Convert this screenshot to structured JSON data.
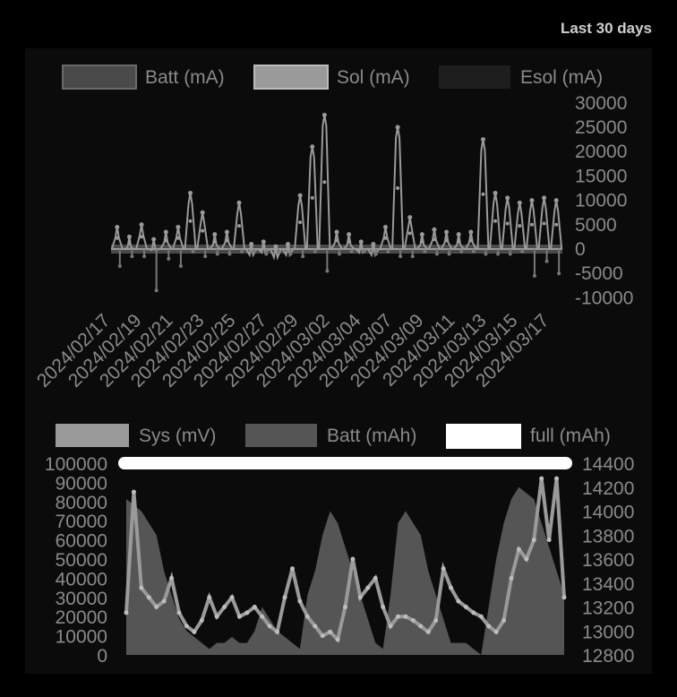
{
  "header": {
    "period_label": "Last 30 days"
  },
  "colors": {
    "background": "#000000",
    "panel": "#0b0b0b",
    "batt_ma": "#4a4a4a",
    "sol_ma": "#9a9a9a",
    "esol_ma": "#1e1e1e",
    "sys_mv": "#9a9a9a",
    "batt_mah": "#555555",
    "full_mah": "#ffffff",
    "text": "#8a8a8a"
  },
  "chart_data": [
    {
      "type": "line",
      "legend": [
        "Batt (mA)",
        "Sol (mA)",
        "Esol (mA)"
      ],
      "legend_position": "top",
      "y_axis_side": "right",
      "ylim": [
        -10000,
        30000
      ],
      "y_ticks": [
        "30000",
        "25000",
        "20000",
        "15000",
        "10000",
        "5000",
        "0",
        "-5000",
        "-10000"
      ],
      "x_tick_labels": [
        "2024/02/17",
        "2024/02/19",
        "2024/02/21",
        "2024/02/23",
        "2024/02/25",
        "2024/02/27",
        "2024/02/29",
        "2024/03/02",
        "2024/03/04",
        "2024/03/07",
        "2024/03/09",
        "2024/03/11",
        "2024/03/13",
        "2024/03/15",
        "2024/03/17"
      ],
      "series": [
        {
          "name": "Sol (mA)",
          "peaks": [
            4500,
            2500,
            5000,
            2000,
            3500,
            4500,
            11500,
            7500,
            3000,
            3500,
            9500,
            1000,
            1500,
            500,
            1000,
            11000,
            21000,
            27500,
            3500,
            3000,
            1500,
            1000,
            4500,
            25000,
            6500,
            3000,
            4000,
            3500,
            3000,
            3500,
            22500,
            11500,
            10500,
            9500,
            10000,
            10500,
            10000
          ]
        },
        {
          "name": "Batt (mA)",
          "troughs": [
            -3500,
            -1500,
            -1500,
            -8500,
            -2000,
            -3500,
            -500,
            -1500,
            -1000,
            -1000,
            -500,
            -500,
            -1000,
            -500,
            -1000,
            -1500,
            -500,
            -4500,
            -1000,
            -500,
            -500,
            -1000,
            -500,
            -1500,
            -1500,
            -500,
            -1000,
            -1000,
            -500,
            -500,
            -1000,
            -1000,
            -1000,
            -500,
            -5500,
            -2500,
            -5000
          ]
        }
      ]
    },
    {
      "type": "area",
      "legend": [
        "Sys (mV)",
        "Batt (mAh)",
        "full (mAh)"
      ],
      "legend_position": "top",
      "y_left_lim": [
        0,
        100000
      ],
      "y_left_ticks": [
        "100000",
        "90000",
        "80000",
        "70000",
        "60000",
        "50000",
        "40000",
        "30000",
        "20000",
        "10000",
        "0"
      ],
      "y_right_lim": [
        12800,
        14400
      ],
      "y_right_ticks": [
        "14400",
        "14200",
        "14000",
        "13800",
        "13600",
        "13400",
        "13200",
        "13000",
        "12800"
      ],
      "series": [
        {
          "name": "full (mAh)",
          "axis": "right",
          "value": 14400
        },
        {
          "name": "Batt (mAh)",
          "axis": "right",
          "values": [
            14100,
            14050,
            14000,
            13900,
            13800,
            13500,
            13300,
            13100,
            13000,
            12950,
            12900,
            12850,
            12900,
            12900,
            12950,
            12900,
            12900,
            13000,
            13200,
            13100,
            13000,
            12950,
            12900,
            12850,
            13300,
            13500,
            13800,
            14000,
            13900,
            13700,
            13500,
            13300,
            13100,
            12900,
            12850,
            13300,
            13900,
            14000,
            13900,
            13800,
            13500,
            13300,
            13100,
            12900,
            12900,
            12900,
            12850,
            12800,
            13200,
            13600,
            13900,
            14100,
            14200,
            14150,
            14100,
            13900,
            13700,
            13500,
            13300
          ]
        },
        {
          "name": "Sys (mV)",
          "axis": "left",
          "values": [
            22000,
            85000,
            35000,
            30000,
            25000,
            28000,
            40000,
            22000,
            15000,
            12000,
            18000,
            30000,
            20000,
            25000,
            30000,
            20000,
            22000,
            25000,
            20000,
            15000,
            12000,
            30000,
            45000,
            28000,
            20000,
            15000,
            10000,
            12000,
            8000,
            25000,
            50000,
            30000,
            35000,
            40000,
            25000,
            15000,
            20000,
            20000,
            18000,
            15000,
            12000,
            18000,
            45000,
            35000,
            28000,
            25000,
            22000,
            20000,
            15000,
            12000,
            18000,
            40000,
            55000,
            50000,
            60000,
            92000,
            60000,
            92000,
            30000
          ]
        }
      ]
    }
  ]
}
